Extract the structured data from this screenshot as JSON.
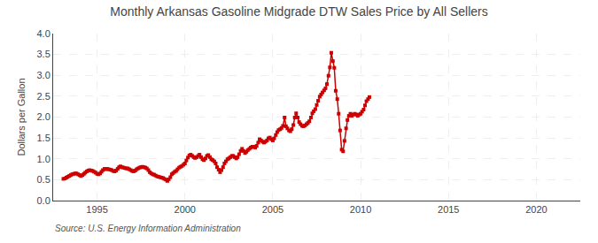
{
  "chart_data": {
    "type": "line",
    "title": "Monthly Arkansas Gasoline Midgrade DTW Sales Price by All Sellers",
    "ylabel": "Dollars per Gallon",
    "annotations": [
      "Source: U.S. Energy Information Administration"
    ],
    "color": "#cc0000",
    "marker": "square",
    "line_style": "solid",
    "grid": true,
    "xlim": [
      1992.5,
      2022.5
    ],
    "ylim": [
      0.0,
      4.0
    ],
    "xticks": [
      1995,
      2000,
      2005,
      2010,
      2015,
      2020
    ],
    "yticks": [
      {
        "value": 0.0,
        "label": "0.0"
      },
      0.5,
      {
        "value": 1.0,
        "label": "1.0"
      },
      1.5,
      {
        "value": 2.0,
        "label": "2.0"
      },
      2.5,
      {
        "value": 3.0,
        "label": "3.0"
      },
      3.5,
      {
        "value": 4.0,
        "label": "4.0"
      }
    ],
    "x": [
      1993.08,
      1993.17,
      1993.25,
      1993.33,
      1993.42,
      1993.5,
      1993.58,
      1993.67,
      1993.75,
      1993.83,
      1993.92,
      1994.0,
      1994.08,
      1994.17,
      1994.25,
      1994.33,
      1994.42,
      1994.5,
      1994.58,
      1994.67,
      1994.75,
      1994.83,
      1994.92,
      1995.0,
      1995.08,
      1995.17,
      1995.25,
      1995.33,
      1995.42,
      1995.5,
      1995.58,
      1995.67,
      1995.75,
      1995.83,
      1995.92,
      1996.0,
      1996.08,
      1996.17,
      1996.25,
      1996.33,
      1996.42,
      1996.5,
      1996.58,
      1996.67,
      1996.75,
      1996.83,
      1996.92,
      1997.0,
      1997.08,
      1997.17,
      1997.25,
      1997.33,
      1997.42,
      1997.5,
      1997.58,
      1997.67,
      1997.75,
      1997.83,
      1997.92,
      1998.0,
      1998.08,
      1998.17,
      1998.25,
      1998.33,
      1998.42,
      1998.5,
      1998.58,
      1998.67,
      1998.75,
      1998.83,
      1998.92,
      1999.0,
      1999.08,
      1999.17,
      1999.25,
      1999.33,
      1999.42,
      1999.5,
      1999.58,
      1999.67,
      1999.75,
      1999.83,
      1999.92,
      2000.0,
      2000.08,
      2000.17,
      2000.25,
      2000.33,
      2000.42,
      2000.5,
      2000.58,
      2000.67,
      2000.75,
      2000.83,
      2000.92,
      2001.0,
      2001.08,
      2001.17,
      2001.25,
      2001.33,
      2001.42,
      2001.5,
      2001.58,
      2001.67,
      2001.75,
      2001.83,
      2001.92,
      2002.0,
      2002.08,
      2002.17,
      2002.25,
      2002.33,
      2002.42,
      2002.5,
      2002.58,
      2002.67,
      2002.75,
      2002.83,
      2002.92,
      2003.0,
      2003.08,
      2003.17,
      2003.25,
      2003.33,
      2003.42,
      2003.5,
      2003.58,
      2003.67,
      2003.75,
      2003.83,
      2003.92,
      2004.0,
      2004.08,
      2004.17,
      2004.25,
      2004.33,
      2004.42,
      2004.5,
      2004.58,
      2004.67,
      2004.75,
      2004.83,
      2004.92,
      2005.0,
      2005.08,
      2005.17,
      2005.25,
      2005.33,
      2005.42,
      2005.5,
      2005.58,
      2005.67,
      2005.75,
      2005.83,
      2005.92,
      2006.0,
      2006.08,
      2006.17,
      2006.25,
      2006.33,
      2006.42,
      2006.5,
      2006.58,
      2006.67,
      2006.75,
      2006.83,
      2006.92,
      2007.0,
      2007.08,
      2007.17,
      2007.25,
      2007.33,
      2007.42,
      2007.5,
      2007.58,
      2007.67,
      2007.75,
      2007.83,
      2007.92,
      2008.0,
      2008.08,
      2008.17,
      2008.25,
      2008.33,
      2008.42,
      2008.5,
      2008.58,
      2008.67,
      2008.75,
      2008.83,
      2008.92,
      2009.0,
      2009.08,
      2009.17,
      2009.25,
      2009.33,
      2009.42,
      2009.5,
      2009.58,
      2009.67,
      2009.75,
      2009.83,
      2009.92,
      2010.0,
      2010.08,
      2010.17,
      2010.25,
      2010.33,
      2010.42,
      2010.5
    ],
    "values": [
      0.52,
      0.53,
      0.55,
      0.57,
      0.59,
      0.61,
      0.63,
      0.64,
      0.65,
      0.65,
      0.63,
      0.61,
      0.59,
      0.61,
      0.64,
      0.67,
      0.7,
      0.72,
      0.73,
      0.72,
      0.71,
      0.69,
      0.67,
      0.64,
      0.63,
      0.65,
      0.69,
      0.73,
      0.76,
      0.75,
      0.76,
      0.75,
      0.74,
      0.73,
      0.71,
      0.7,
      0.72,
      0.76,
      0.8,
      0.82,
      0.8,
      0.79,
      0.78,
      0.77,
      0.77,
      0.75,
      0.73,
      0.71,
      0.7,
      0.72,
      0.75,
      0.77,
      0.79,
      0.8,
      0.81,
      0.8,
      0.79,
      0.77,
      0.73,
      0.68,
      0.65,
      0.63,
      0.62,
      0.6,
      0.58,
      0.57,
      0.56,
      0.55,
      0.54,
      0.52,
      0.5,
      0.47,
      0.51,
      0.56,
      0.63,
      0.66,
      0.69,
      0.71,
      0.75,
      0.79,
      0.81,
      0.83,
      0.86,
      0.89,
      0.96,
      1.03,
      1.08,
      1.1,
      1.07,
      1.04,
      1.02,
      1.04,
      1.07,
      1.1,
      1.04,
      0.99,
      0.97,
      1.01,
      1.07,
      1.09,
      1.04,
      0.99,
      0.97,
      0.94,
      0.89,
      0.8,
      0.74,
      0.68,
      0.73,
      0.8,
      0.89,
      0.94,
      0.99,
      1.01,
      1.04,
      1.07,
      1.07,
      1.04,
      1.01,
      1.04,
      1.11,
      1.19,
      1.24,
      1.19,
      1.14,
      1.17,
      1.21,
      1.24,
      1.27,
      1.29,
      1.29,
      1.27,
      1.31,
      1.39,
      1.47,
      1.44,
      1.41,
      1.39,
      1.41,
      1.44,
      1.49,
      1.51,
      1.47,
      1.44,
      1.49,
      1.57,
      1.64,
      1.69,
      1.71,
      1.74,
      1.79,
      1.99,
      1.78,
      1.73,
      1.68,
      1.66,
      1.71,
      1.81,
      1.99,
      2.09,
      1.99,
      1.88,
      1.83,
      1.79,
      1.78,
      1.8,
      1.83,
      1.86,
      1.9,
      1.99,
      2.09,
      2.14,
      2.19,
      2.29,
      2.39,
      2.49,
      2.54,
      2.59,
      2.64,
      2.69,
      2.79,
      2.99,
      3.19,
      3.54,
      3.34,
      3.18,
      2.63,
      2.43,
      2.08,
      1.68,
      1.22,
      1.18,
      1.43,
      1.73,
      1.93,
      2.03,
      2.08,
      2.03,
      2.06,
      2.08,
      2.06,
      2.03,
      2.06,
      2.08,
      2.13,
      2.18,
      2.28,
      2.38,
      2.43,
      2.48
    ]
  }
}
